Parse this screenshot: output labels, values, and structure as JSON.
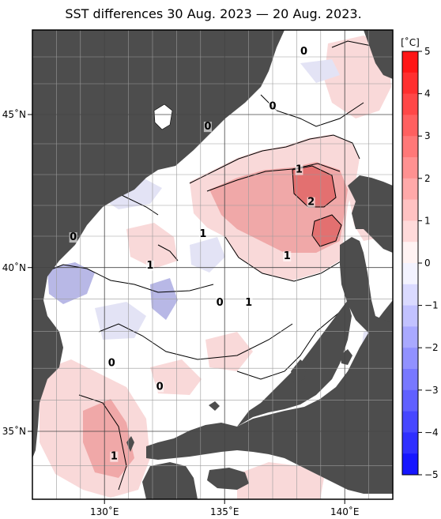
{
  "title": "SST differences 30 Aug. 2023 — 20 Aug. 2023.",
  "axes": {
    "lon_range": [
      127,
      142
    ],
    "lat_range": [
      33,
      48
    ],
    "x_ticks": [
      "130˚E",
      "135˚E",
      "140˚E"
    ],
    "y_ticks": [
      "35˚N",
      "40˚N",
      "45˚N"
    ],
    "grid": "1 degree"
  },
  "colorbar": {
    "unit": "[˚C]",
    "range": [
      -5,
      5
    ],
    "labels": [
      "5",
      "4",
      "3",
      "2",
      "1",
      "0",
      "−1",
      "−2",
      "−3",
      "−4",
      "−5"
    ]
  },
  "contour_labels": [
    {
      "text": "0",
      "lon": 138.3,
      "lat": 47.3
    },
    {
      "text": "0",
      "lon": 137.0,
      "lat": 45.7
    },
    {
      "text": "0",
      "lon": 134.3,
      "lat": 45.1
    },
    {
      "text": "1",
      "lon": 138.1,
      "lat": 43.8
    },
    {
      "text": "2",
      "lon": 138.6,
      "lat": 42.8
    },
    {
      "text": "1",
      "lon": 134.1,
      "lat": 41.8
    },
    {
      "text": "0",
      "lon": 128.7,
      "lat": 41.7
    },
    {
      "text": "1",
      "lon": 131.9,
      "lat": 40.8
    },
    {
      "text": "1",
      "lon": 137.6,
      "lat": 41.1
    },
    {
      "text": "0",
      "lon": 134.8,
      "lat": 39.6
    },
    {
      "text": "1",
      "lon": 136.0,
      "lat": 39.6
    },
    {
      "text": "0",
      "lon": 130.3,
      "lat": 37.6
    },
    {
      "text": "0",
      "lon": 132.3,
      "lat": 36.8
    },
    {
      "text": "1",
      "lon": 130.4,
      "lat": 34.4
    }
  ],
  "colors": {
    "land": "#4d4d4d",
    "ocean": "#ffffff",
    "warm_1": "#f9d9d9",
    "warm_2": "#f0a8a8",
    "warm_3": "#e37070",
    "cool_1": "#e3e3f5",
    "cool_2": "#b8b8e6"
  }
}
